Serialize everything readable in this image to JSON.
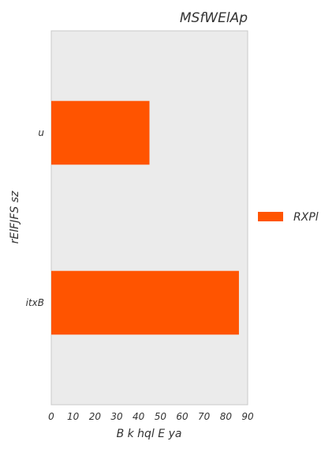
{
  "chart_data": {
    "type": "bar",
    "orientation": "horizontal",
    "title": "MSfWElAp",
    "xlabel": "B k hql E ya",
    "ylabel": "rElFJFS sz",
    "categories": [
      "u",
      "itxB"
    ],
    "series": [
      {
        "name": "RXPl",
        "values": [
          45,
          86
        ],
        "color": "#ff5400"
      }
    ],
    "xlim": [
      0,
      90
    ],
    "xticks": [
      "0",
      "10",
      "20",
      "30",
      "40",
      "50",
      "60",
      "70",
      "80",
      "90"
    ],
    "grid": false,
    "legend_position": "right",
    "plot_background": "#ebebeb"
  }
}
